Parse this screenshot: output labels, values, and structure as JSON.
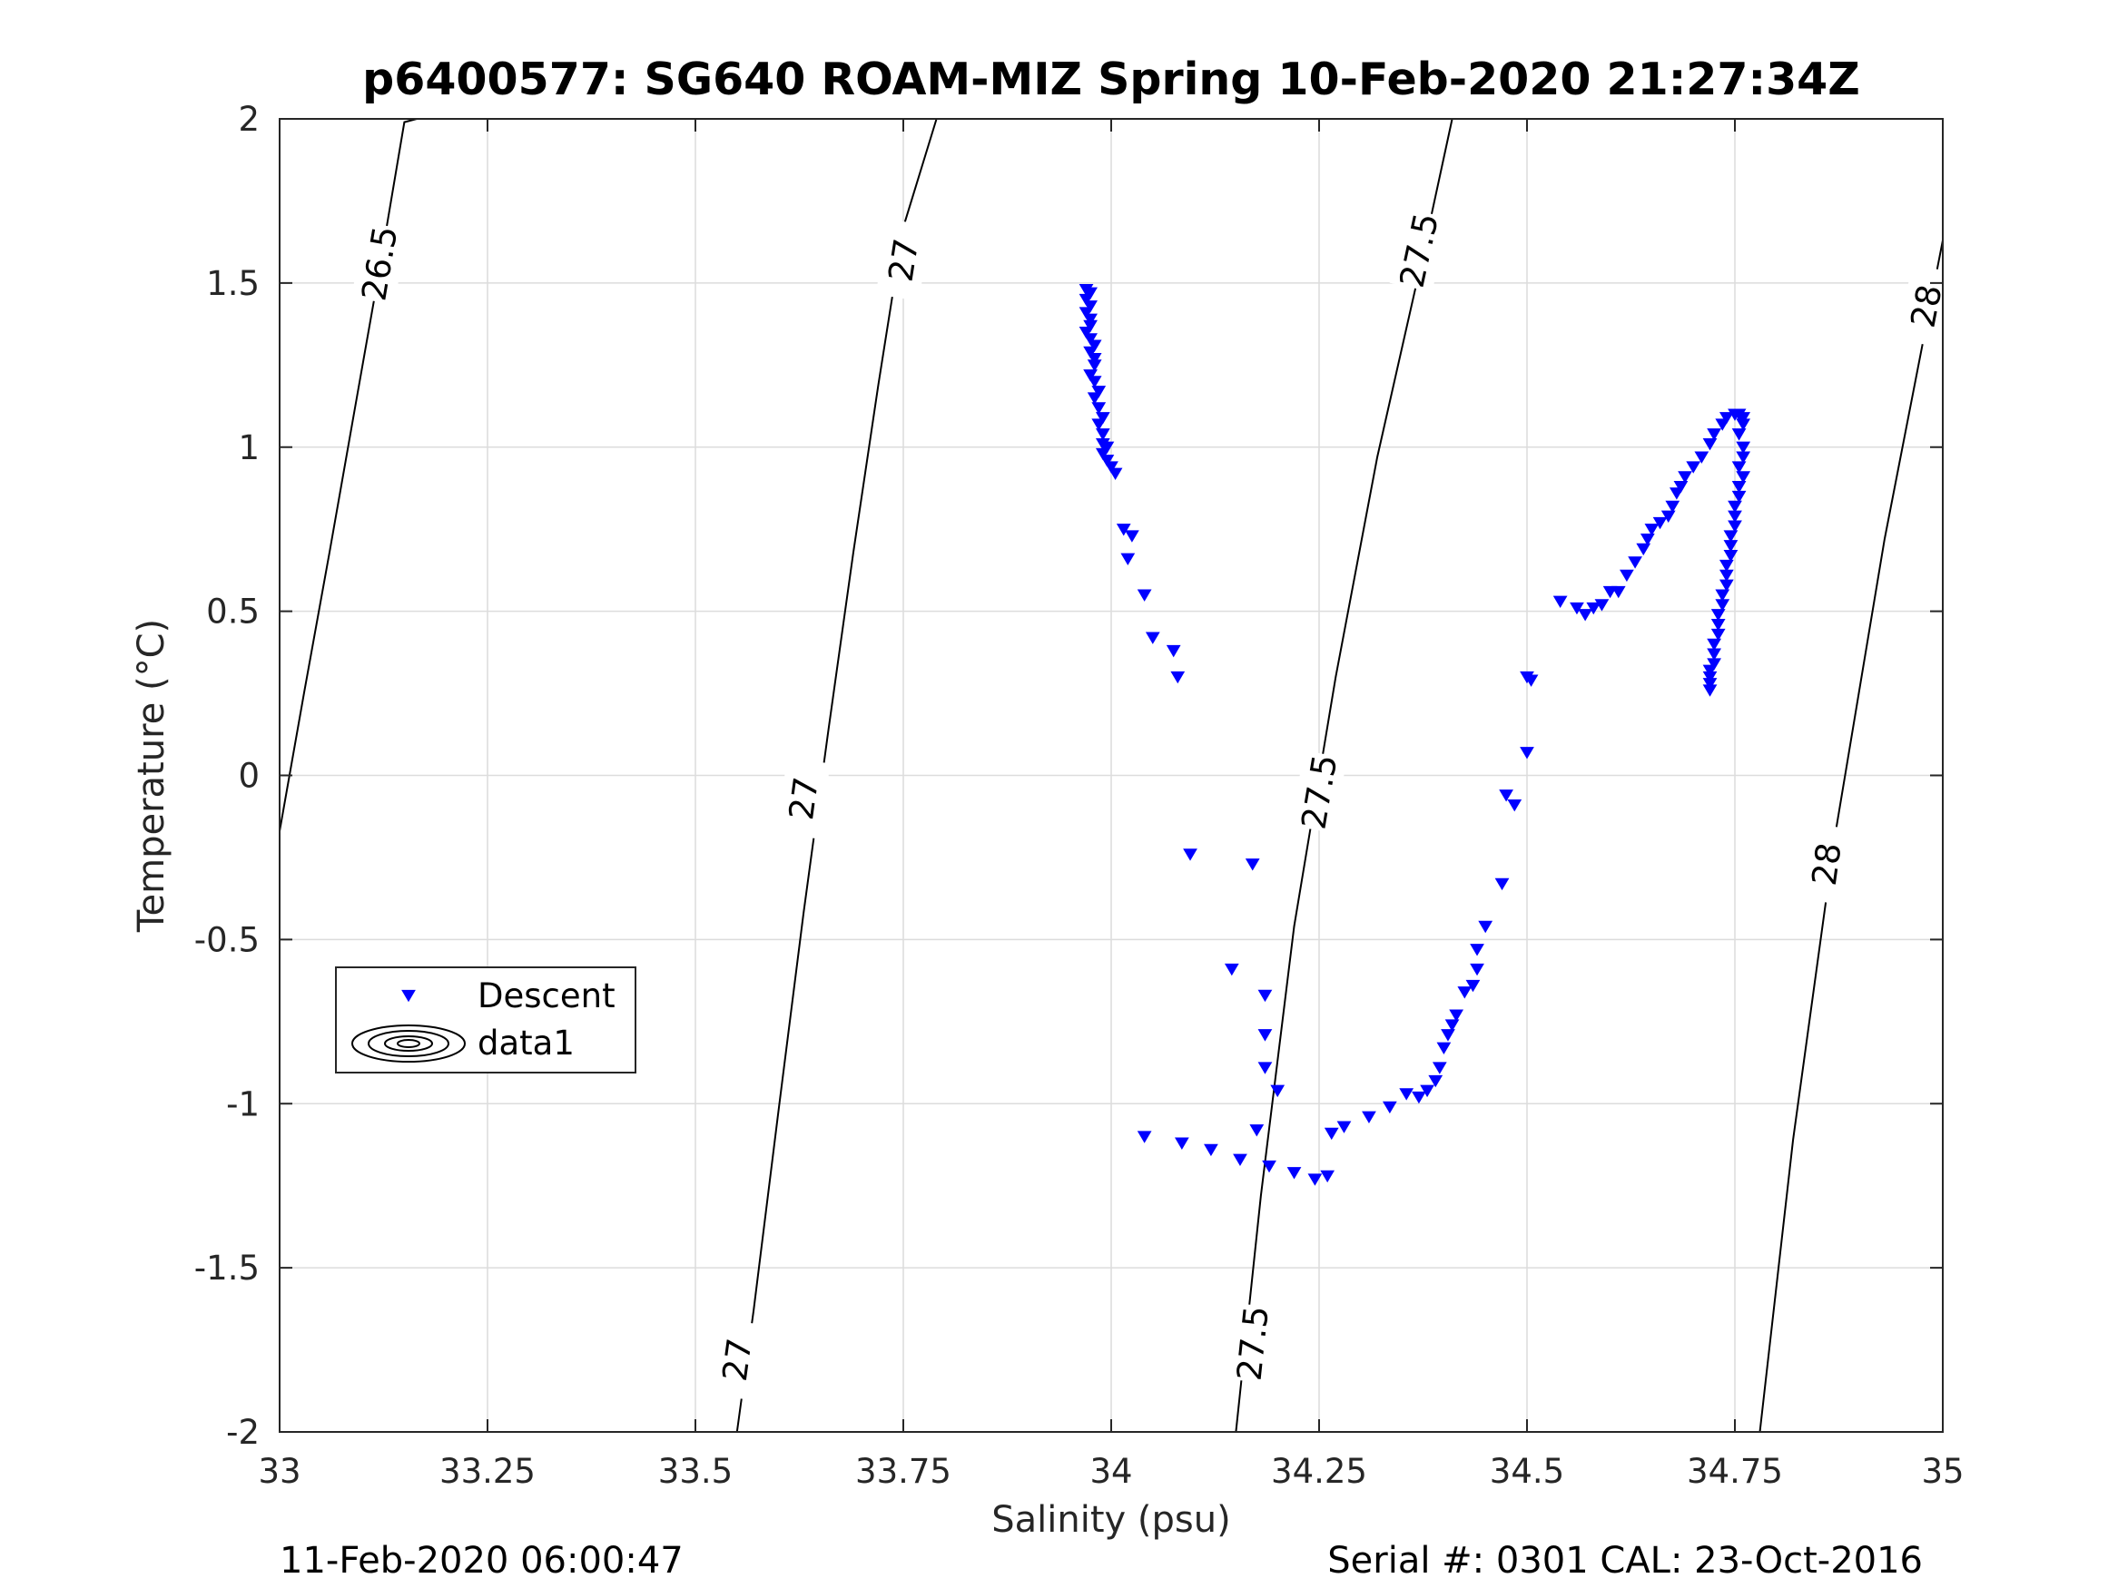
{
  "chart_data": {
    "type": "scatter",
    "title": "p6400577: SG640 ROAM-MIZ Spring 10-Feb-2020 21:27:34Z",
    "xlabel": "Salinity (psu)",
    "ylabel": "Temperature (°C)",
    "xlim": [
      33,
      35
    ],
    "ylim": [
      -2,
      2
    ],
    "xticks": [
      33,
      33.25,
      33.5,
      33.75,
      34,
      34.25,
      34.5,
      34.75,
      35
    ],
    "xtick_labels": [
      "33",
      "33.25",
      "33.5",
      "33.75",
      "34",
      "34.25",
      "34.5",
      "34.75",
      "35"
    ],
    "yticks": [
      -2,
      -1.5,
      -1,
      -0.5,
      0,
      0.5,
      1,
      1.5,
      2
    ],
    "ytick_labels": [
      "-2",
      "-1.5",
      "-1",
      "-0.5",
      "0",
      "0.5",
      "1",
      "1.5",
      "2"
    ],
    "grid": true,
    "legend_position": "lower-left",
    "legend": [
      "Descent",
      "data1"
    ],
    "marker_color": "#0000ff",
    "series": [
      {
        "name": "Descent",
        "marker": "triangle-down",
        "points": [
          [
            33.97,
            1.48
          ],
          [
            33.975,
            1.47
          ],
          [
            33.97,
            1.45
          ],
          [
            33.975,
            1.43
          ],
          [
            33.97,
            1.41
          ],
          [
            33.975,
            1.39
          ],
          [
            33.975,
            1.37
          ],
          [
            33.97,
            1.35
          ],
          [
            33.975,
            1.33
          ],
          [
            33.98,
            1.31
          ],
          [
            33.975,
            1.29
          ],
          [
            33.98,
            1.27
          ],
          [
            33.98,
            1.25
          ],
          [
            33.975,
            1.22
          ],
          [
            33.98,
            1.2
          ],
          [
            33.985,
            1.17
          ],
          [
            33.98,
            1.15
          ],
          [
            33.985,
            1.12
          ],
          [
            33.99,
            1.09
          ],
          [
            33.985,
            1.07
          ],
          [
            33.99,
            1.04
          ],
          [
            33.99,
            1.01
          ],
          [
            33.995,
            1.0
          ],
          [
            33.99,
            0.98
          ],
          [
            33.995,
            0.96
          ],
          [
            34.0,
            0.94
          ],
          [
            34.005,
            0.92
          ],
          [
            34.015,
            0.75
          ],
          [
            34.025,
            0.73
          ],
          [
            34.02,
            0.66
          ],
          [
            34.04,
            0.55
          ],
          [
            34.05,
            0.42
          ],
          [
            34.075,
            0.38
          ],
          [
            34.08,
            0.3
          ],
          [
            34.095,
            -0.24
          ],
          [
            34.17,
            -0.27
          ],
          [
            34.145,
            -0.59
          ],
          [
            34.185,
            -0.67
          ],
          [
            34.185,
            -0.79
          ],
          [
            34.185,
            -0.89
          ],
          [
            34.2,
            -0.96
          ],
          [
            34.04,
            -1.1
          ],
          [
            34.085,
            -1.12
          ],
          [
            34.12,
            -1.14
          ],
          [
            34.155,
            -1.17
          ],
          [
            34.175,
            -1.08
          ],
          [
            34.19,
            -1.19
          ],
          [
            34.22,
            -1.21
          ],
          [
            34.245,
            -1.23
          ],
          [
            34.26,
            -1.22
          ],
          [
            34.265,
            -1.09
          ],
          [
            34.28,
            -1.07
          ],
          [
            34.31,
            -1.04
          ],
          [
            34.335,
            -1.01
          ],
          [
            34.355,
            -0.97
          ],
          [
            34.37,
            -0.98
          ],
          [
            34.38,
            -0.96
          ],
          [
            34.39,
            -0.93
          ],
          [
            34.395,
            -0.89
          ],
          [
            34.4,
            -0.83
          ],
          [
            34.405,
            -0.79
          ],
          [
            34.41,
            -0.76
          ],
          [
            34.415,
            -0.73
          ],
          [
            34.425,
            -0.66
          ],
          [
            34.435,
            -0.64
          ],
          [
            34.44,
            -0.59
          ],
          [
            34.44,
            -0.53
          ],
          [
            34.45,
            -0.46
          ],
          [
            34.47,
            -0.33
          ],
          [
            34.475,
            -0.06
          ],
          [
            34.485,
            -0.09
          ],
          [
            34.5,
            0.07
          ],
          [
            34.505,
            0.29
          ],
          [
            34.5,
            0.3
          ],
          [
            34.54,
            0.53
          ],
          [
            34.56,
            0.51
          ],
          [
            34.57,
            0.49
          ],
          [
            34.58,
            0.51
          ],
          [
            34.59,
            0.52
          ],
          [
            34.6,
            0.56
          ],
          [
            34.61,
            0.56
          ],
          [
            34.62,
            0.61
          ],
          [
            34.63,
            0.65
          ],
          [
            34.64,
            0.69
          ],
          [
            34.645,
            0.72
          ],
          [
            34.65,
            0.75
          ],
          [
            34.66,
            0.77
          ],
          [
            34.67,
            0.79
          ],
          [
            34.675,
            0.82
          ],
          [
            34.68,
            0.86
          ],
          [
            34.685,
            0.88
          ],
          [
            34.69,
            0.91
          ],
          [
            34.7,
            0.94
          ],
          [
            34.71,
            0.97
          ],
          [
            34.72,
            1.01
          ],
          [
            34.725,
            1.04
          ],
          [
            34.735,
            1.07
          ],
          [
            34.74,
            1.09
          ],
          [
            34.75,
            1.1
          ],
          [
            34.755,
            1.1
          ],
          [
            34.76,
            1.09
          ],
          [
            34.76,
            1.07
          ],
          [
            34.755,
            1.04
          ],
          [
            34.76,
            1.0
          ],
          [
            34.76,
            0.97
          ],
          [
            34.755,
            0.94
          ],
          [
            34.76,
            0.91
          ],
          [
            34.755,
            0.88
          ],
          [
            34.755,
            0.85
          ],
          [
            34.75,
            0.82
          ],
          [
            34.75,
            0.79
          ],
          [
            34.75,
            0.76
          ],
          [
            34.745,
            0.73
          ],
          [
            34.745,
            0.7
          ],
          [
            34.745,
            0.67
          ],
          [
            34.74,
            0.64
          ],
          [
            34.74,
            0.61
          ],
          [
            34.74,
            0.58
          ],
          [
            34.735,
            0.55
          ],
          [
            34.735,
            0.52
          ],
          [
            34.73,
            0.49
          ],
          [
            34.73,
            0.46
          ],
          [
            34.73,
            0.43
          ],
          [
            34.725,
            0.4
          ],
          [
            34.725,
            0.37
          ],
          [
            34.725,
            0.34
          ],
          [
            34.72,
            0.32
          ],
          [
            34.72,
            0.3
          ],
          [
            34.72,
            0.28
          ],
          [
            34.72,
            0.26
          ]
        ]
      },
      {
        "name": "data1",
        "type": "contour",
        "color": "#000000",
        "levels": [
          {
            "value": "26.5",
            "points": [
              [
                33.0,
                -0.17
              ],
              [
                33.03,
                0.26
              ],
              [
                33.06,
                0.68
              ],
              [
                33.09,
                1.11
              ],
              [
                33.12,
                1.54
              ],
              [
                33.15,
                1.99
              ],
              [
                33.165,
                2.0
              ]
            ],
            "labels": [
              [
                33.12,
                1.56
              ]
            ]
          },
          {
            "value": "27",
            "points": [
              [
                33.55,
                -2.0
              ],
              [
                33.57,
                -1.63
              ],
              [
                33.6,
                -1.02
              ],
              [
                33.63,
                -0.42
              ],
              [
                33.66,
                0.14
              ],
              [
                33.69,
                0.68
              ],
              [
                33.72,
                1.19
              ],
              [
                33.75,
                1.67
              ],
              [
                33.79,
                2.0
              ]
            ],
            "labels": [
              [
                33.55,
                -1.78
              ],
              [
                33.63,
                -0.07
              ],
              [
                33.75,
                1.57
              ]
            ]
          },
          {
            "value": "27.5",
            "points": [
              [
                34.15,
                -2.0
              ],
              [
                34.18,
                -1.28
              ],
              [
                34.22,
                -0.46
              ],
              [
                34.27,
                0.3
              ],
              [
                34.32,
                0.97
              ],
              [
                34.37,
                1.53
              ],
              [
                34.41,
                2.0
              ]
            ],
            "labels": [
              [
                34.17,
                -1.73
              ],
              [
                34.25,
                -0.05
              ],
              [
                34.37,
                1.6
              ]
            ]
          },
          {
            "value": "28",
            "points": [
              [
                34.78,
                -2.0
              ],
              [
                34.82,
                -1.11
              ],
              [
                34.87,
                -0.19
              ],
              [
                34.93,
                0.72
              ],
              [
                35.0,
                1.63
              ]
            ],
            "labels": [
              [
                34.86,
                -0.27
              ],
              [
                34.98,
                1.43
              ]
            ]
          }
        ]
      }
    ]
  },
  "footer": {
    "left": "11-Feb-2020 06:00:47",
    "right": "Serial #: 0301  CAL: 23-Oct-2016"
  }
}
